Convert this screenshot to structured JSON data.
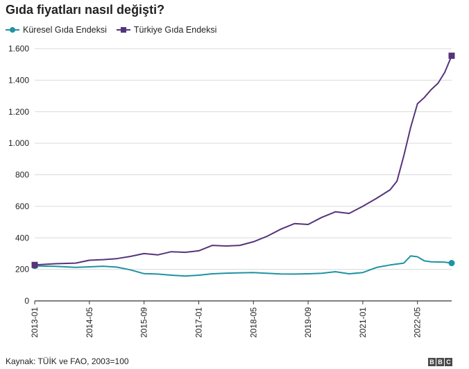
{
  "title": "Gıda fiyatları nasıl değişti?",
  "source": "Kaynak: TÜİK ve FAO, 2003=100",
  "logo_text": "BBC",
  "colors": {
    "global": "#1f92a3",
    "turkey": "#55347a",
    "grid": "#d9d9d9",
    "axis": "#333333"
  },
  "chart_data": {
    "type": "line",
    "title": "Gıda fiyatları nasıl değişti?",
    "xlabel": "",
    "ylabel": "",
    "ylim": [
      0,
      1600
    ],
    "yticks": [
      0,
      200,
      400,
      600,
      800,
      1000,
      1200,
      1400,
      1600
    ],
    "ytick_labels": [
      "0",
      "200",
      "400",
      "600",
      "800",
      "1.000",
      "1.200",
      "1.400",
      "1.600"
    ],
    "xticks": [
      "2013-01",
      "2014-05",
      "2015-09",
      "2017-01",
      "2018-05",
      "2019-09",
      "2021-01",
      "2022-05"
    ],
    "x_start": "2013-01",
    "x_end": "2023-03",
    "grid": true,
    "legend_position": "top-left",
    "series": [
      {
        "name": "Küresel Gıda Endeksi",
        "marker": "circle",
        "color": "#1f92a3",
        "points": [
          [
            "2013-01",
            222
          ],
          [
            "2013-07",
            219
          ],
          [
            "2014-01",
            213
          ],
          [
            "2014-05",
            216
          ],
          [
            "2014-09",
            220
          ],
          [
            "2015-01",
            214
          ],
          [
            "2015-05",
            197
          ],
          [
            "2015-09",
            173
          ],
          [
            "2016-01",
            170
          ],
          [
            "2016-05",
            163
          ],
          [
            "2016-09",
            158
          ],
          [
            "2017-01",
            163
          ],
          [
            "2017-05",
            172
          ],
          [
            "2017-09",
            176
          ],
          [
            "2018-01",
            178
          ],
          [
            "2018-05",
            180
          ],
          [
            "2018-09",
            175
          ],
          [
            "2019-01",
            171
          ],
          [
            "2019-05",
            170
          ],
          [
            "2019-09",
            172
          ],
          [
            "2020-01",
            175
          ],
          [
            "2020-05",
            185
          ],
          [
            "2020-09",
            172
          ],
          [
            "2021-01",
            180
          ],
          [
            "2021-05",
            212
          ],
          [
            "2021-09",
            228
          ],
          [
            "2022-01",
            240
          ],
          [
            "2022-03",
            285
          ],
          [
            "2022-05",
            280
          ],
          [
            "2022-07",
            254
          ],
          [
            "2022-09",
            248
          ],
          [
            "2023-01",
            246
          ],
          [
            "2023-03",
            240
          ]
        ]
      },
      {
        "name": "Türkiye Gıda Endeksi",
        "marker": "square",
        "color": "#55347a",
        "points": [
          [
            "2013-01",
            228
          ],
          [
            "2013-07",
            236
          ],
          [
            "2014-01",
            240
          ],
          [
            "2014-05",
            258
          ],
          [
            "2014-09",
            262
          ],
          [
            "2015-01",
            268
          ],
          [
            "2015-05",
            282
          ],
          [
            "2015-09",
            300
          ],
          [
            "2016-01",
            292
          ],
          [
            "2016-05",
            312
          ],
          [
            "2016-09",
            308
          ],
          [
            "2017-01",
            318
          ],
          [
            "2017-05",
            352
          ],
          [
            "2017-09",
            348
          ],
          [
            "2018-01",
            352
          ],
          [
            "2018-05",
            375
          ],
          [
            "2018-09",
            410
          ],
          [
            "2019-01",
            455
          ],
          [
            "2019-05",
            490
          ],
          [
            "2019-09",
            485
          ],
          [
            "2020-01",
            530
          ],
          [
            "2020-05",
            565
          ],
          [
            "2020-09",
            555
          ],
          [
            "2021-01",
            600
          ],
          [
            "2021-05",
            650
          ],
          [
            "2021-09",
            705
          ],
          [
            "2021-11",
            760
          ],
          [
            "2022-01",
            920
          ],
          [
            "2022-03",
            1100
          ],
          [
            "2022-05",
            1250
          ],
          [
            "2022-07",
            1290
          ],
          [
            "2022-09",
            1340
          ],
          [
            "2022-11",
            1380
          ],
          [
            "2023-01",
            1450
          ],
          [
            "2023-03",
            1555
          ]
        ]
      }
    ]
  }
}
